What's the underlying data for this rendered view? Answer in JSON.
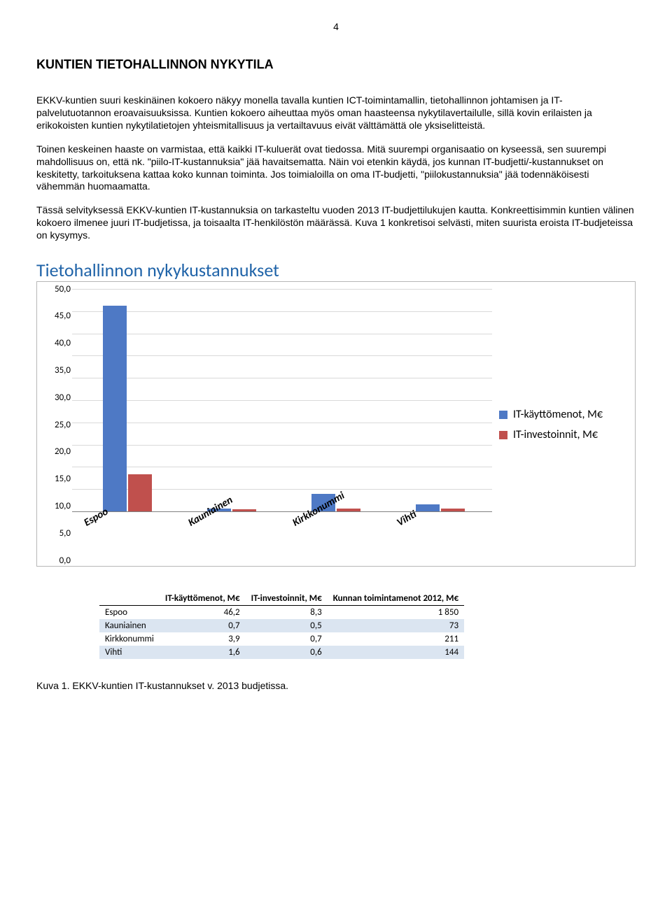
{
  "page_number": "4",
  "heading": "KUNTIEN TIETOHALLINNON NYKYTILA",
  "paragraphs": [
    "EKKV-kuntien suuri keskinäinen kokoero näkyy monella tavalla kuntien ICT-toimintamallin, tietohallinnon johtamisen ja IT-palvelutuotannon eroavaisuuksissa. Kuntien kokoero aiheuttaa myös oman haasteensa nykytilavertailulle, sillä kovin erilaisten ja erikokoisten kuntien nykytilatietojen yhteismitallisuus ja vertailtavuus eivät välttämättä ole yksiselitteistä.",
    "Toinen keskeinen haaste on varmistaa, että kaikki IT-kuluerät ovat tiedossa. Mitä suurempi organisaatio on kyseessä, sen suurempi mahdollisuus on, että nk. \"piilo-IT-kustannuksia\" jää havaitsematta. Näin voi etenkin käydä, jos kunnan IT-budjetti/-kustannukset on keskitetty, tarkoituksena kattaa koko kunnan toiminta. Jos toimialoilla on oma IT-budjetti, \"piilokustannuksia\" jää todennäköisesti vähemmän huomaamatta.",
    "Tässä selvityksessä EKKV-kuntien IT-kustannuksia on tarkasteltu vuoden 2013 IT-budjettilukujen kautta. Konkreettisimmin kuntien välinen kokoero ilmenee juuri IT-budjetissa, ja toisaalta IT-henkilöstön määrässä. Kuva 1 konkretisoi selvästi, miten suurista eroista IT-budjeteissa on kysymys."
  ],
  "chart": {
    "title": "Tietohallinnon nykykustannukset",
    "title_color": "#1f63a8",
    "border_color": "#b7b7b7",
    "grid_color": "#d9d9d9",
    "axis_line_color": "#808080",
    "background_color": "#ffffff",
    "y_max": 50,
    "y_step": 5,
    "y_ticks": [
      "50,0",
      "45,0",
      "40,0",
      "35,0",
      "30,0",
      "25,0",
      "20,0",
      "15,0",
      "10,0",
      "5,0",
      "0,0"
    ],
    "categories": [
      "Espoo",
      "Kauniainen",
      "Kirkkonummi",
      "Vihti"
    ],
    "series": [
      {
        "name": "IT-käyttömenot, M€",
        "color": "#4e79c5",
        "values": [
          46.2,
          0.7,
          3.9,
          1.6
        ]
      },
      {
        "name": "IT-investoinnit, M€",
        "color": "#c0504d",
        "values": [
          8.3,
          0.5,
          0.7,
          0.6
        ]
      }
    ]
  },
  "table": {
    "headers": [
      "",
      "IT-käyttömenot, M€",
      "IT-investoinnit, M€",
      "Kunnan toimintamenot 2012, M€"
    ],
    "shade_color": "#dbe5f1",
    "rows": [
      {
        "label": "Espoo",
        "v1": "46,2",
        "v2": "8,3",
        "v3": "1 850",
        "shaded": false
      },
      {
        "label": "Kauniainen",
        "v1": "0,7",
        "v2": "0,5",
        "v3": "73",
        "shaded": true
      },
      {
        "label": "Kirkkonummi",
        "v1": "3,9",
        "v2": "0,7",
        "v3": "211",
        "shaded": false
      },
      {
        "label": "Vihti",
        "v1": "1,6",
        "v2": "0,6",
        "v3": "144",
        "shaded": true
      }
    ]
  },
  "caption": "Kuva 1. EKKV-kuntien IT-kustannukset v. 2013 budjetissa."
}
